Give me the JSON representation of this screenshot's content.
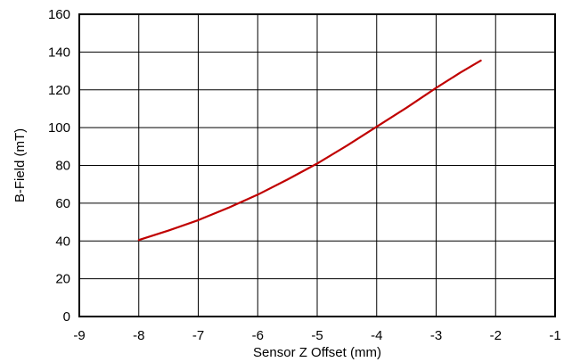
{
  "chart_data": {
    "type": "line",
    "title": "",
    "xlabel": "Sensor Z Offset (mm)",
    "ylabel": "B-Field (mT)",
    "xlim": [
      -9,
      -1
    ],
    "ylim": [
      0,
      160
    ],
    "x_ticks": [
      -9,
      -8,
      -7,
      -6,
      -5,
      -4,
      -3,
      -2,
      -1
    ],
    "y_ticks": [
      0,
      20,
      40,
      60,
      80,
      100,
      120,
      140,
      160
    ],
    "x_tick_labels": [
      "-9",
      "-8",
      "-7",
      "-6",
      "-5",
      "-4",
      "-3",
      "-2",
      "-1"
    ],
    "y_tick_labels": [
      "0",
      "20",
      "40",
      "60",
      "80",
      "100",
      "120",
      "140",
      "160"
    ],
    "grid": true,
    "legend": "none",
    "series": [
      {
        "color": "#c00000",
        "x": [
          -8,
          -7.5,
          -7,
          -6.5,
          -6,
          -5.5,
          -5,
          -4.5,
          -4,
          -3.5,
          -3,
          -2.6,
          -2.25
        ],
        "y": [
          40.5,
          45.5,
          51,
          57.5,
          64.5,
          72.5,
          81,
          90.5,
          100.5,
          110.5,
          121,
          129,
          135.5
        ]
      }
    ]
  }
}
